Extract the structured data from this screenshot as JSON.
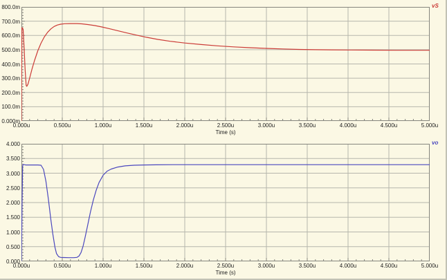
{
  "window": {
    "background": "#FBF8E4",
    "edge_color": "#C2C2B4"
  },
  "colors": {
    "grid": "#B6B6AC",
    "axis": "#85857D",
    "text": "#1C1C1C",
    "trace_red": "#CB3A36",
    "trace_blue": "#4A47BE"
  },
  "chart_data": [
    {
      "type": "line",
      "legend": "vS",
      "color": "#CB3A36",
      "xlabel": "Time (s)",
      "x_ticks": [
        "0.000u",
        "0.500u",
        "1.000u",
        "1.500u",
        "2.000u",
        "2.500u",
        "3.000u",
        "3.500u",
        "4.000u",
        "4.500u",
        "5.000u"
      ],
      "y_ticks": [
        "800.0m",
        "700.0m",
        "600.0m",
        "500.0m",
        "400.0m",
        "300.0m",
        "200.0m",
        "100.0m",
        "0.000m"
      ],
      "x_range": [
        0,
        5
      ],
      "y_range": [
        0,
        800
      ],
      "x_unit": "us",
      "y_unit": "mV",
      "minor_divisions": 5,
      "grid": true,
      "legend_position": "top-right",
      "points": [
        [
          0,
          0
        ],
        [
          0.006,
          655
        ],
        [
          0.02,
          645
        ],
        [
          0.032,
          520
        ],
        [
          0.045,
          360
        ],
        [
          0.058,
          250
        ],
        [
          0.065,
          243
        ],
        [
          0.08,
          258
        ],
        [
          0.1,
          300
        ],
        [
          0.13,
          365
        ],
        [
          0.16,
          424
        ],
        [
          0.2,
          492
        ],
        [
          0.24,
          546
        ],
        [
          0.28,
          589
        ],
        [
          0.32,
          622
        ],
        [
          0.36,
          646
        ],
        [
          0.4,
          663
        ],
        [
          0.44,
          673
        ],
        [
          0.48,
          679
        ],
        [
          0.53,
          682
        ],
        [
          0.6,
          683
        ],
        [
          0.68,
          683
        ],
        [
          0.74,
          681
        ],
        [
          0.82,
          676
        ],
        [
          0.9,
          669
        ],
        [
          0.98,
          660
        ],
        [
          1.07,
          648
        ],
        [
          1.17,
          634
        ],
        [
          1.28,
          619
        ],
        [
          1.4,
          603
        ],
        [
          1.53,
          587
        ],
        [
          1.67,
          572
        ],
        [
          1.82,
          559
        ],
        [
          2.0,
          547
        ],
        [
          2.2,
          536
        ],
        [
          2.4,
          527
        ],
        [
          2.6,
          520
        ],
        [
          2.8,
          514
        ],
        [
          3.0,
          509
        ],
        [
          3.2,
          505
        ],
        [
          3.4,
          502
        ],
        [
          3.6,
          500
        ],
        [
          3.8,
          499
        ],
        [
          4.0,
          498
        ],
        [
          4.3,
          497
        ],
        [
          4.6,
          496
        ],
        [
          5.0,
          496
        ]
      ]
    },
    {
      "type": "line",
      "legend": "vo",
      "color": "#4A47BE",
      "xlabel": "Time (s)",
      "x_ticks": [
        "0.000u",
        "0.500u",
        "1.000u",
        "1.500u",
        "2.000u",
        "2.500u",
        "3.000u",
        "3.500u",
        "4.000u",
        "4.500u",
        "5.000u"
      ],
      "y_ticks": [
        "4.000",
        "3.500",
        "3.000",
        "2.500",
        "2.000",
        "1.500",
        "1.000",
        "0.500",
        "0.000"
      ],
      "x_range": [
        0,
        5
      ],
      "y_range": [
        0,
        4
      ],
      "x_unit": "us",
      "y_unit": "V",
      "minor_divisions": 5,
      "grid": true,
      "legend_position": "top-right",
      "points": [
        [
          0,
          0.02
        ],
        [
          0.008,
          2.0
        ],
        [
          0.014,
          3.24
        ],
        [
          0.02,
          3.3
        ],
        [
          0.05,
          3.28
        ],
        [
          0.1,
          3.28
        ],
        [
          0.15,
          3.28
        ],
        [
          0.2,
          3.28
        ],
        [
          0.24,
          3.27
        ],
        [
          0.27,
          3.13
        ],
        [
          0.3,
          2.72
        ],
        [
          0.33,
          2.12
        ],
        [
          0.36,
          1.42
        ],
        [
          0.385,
          0.92
        ],
        [
          0.41,
          0.48
        ],
        [
          0.43,
          0.26
        ],
        [
          0.455,
          0.16
        ],
        [
          0.48,
          0.135
        ],
        [
          0.52,
          0.13
        ],
        [
          0.58,
          0.125
        ],
        [
          0.64,
          0.125
        ],
        [
          0.68,
          0.135
        ],
        [
          0.705,
          0.18
        ],
        [
          0.73,
          0.3
        ],
        [
          0.755,
          0.52
        ],
        [
          0.78,
          0.82
        ],
        [
          0.81,
          1.22
        ],
        [
          0.845,
          1.68
        ],
        [
          0.88,
          2.08
        ],
        [
          0.915,
          2.42
        ],
        [
          0.95,
          2.68
        ],
        [
          1.0,
          2.93
        ],
        [
          1.05,
          3.07
        ],
        [
          1.1,
          3.14
        ],
        [
          1.18,
          3.21
        ],
        [
          1.27,
          3.25
        ],
        [
          1.38,
          3.27
        ],
        [
          1.5,
          3.28
        ],
        [
          1.65,
          3.285
        ],
        [
          1.85,
          3.29
        ],
        [
          2.1,
          3.29
        ],
        [
          2.5,
          3.29
        ],
        [
          3.0,
          3.29
        ],
        [
          3.5,
          3.29
        ],
        [
          4.0,
          3.29
        ],
        [
          4.5,
          3.29
        ],
        [
          5.0,
          3.29
        ]
      ]
    }
  ]
}
